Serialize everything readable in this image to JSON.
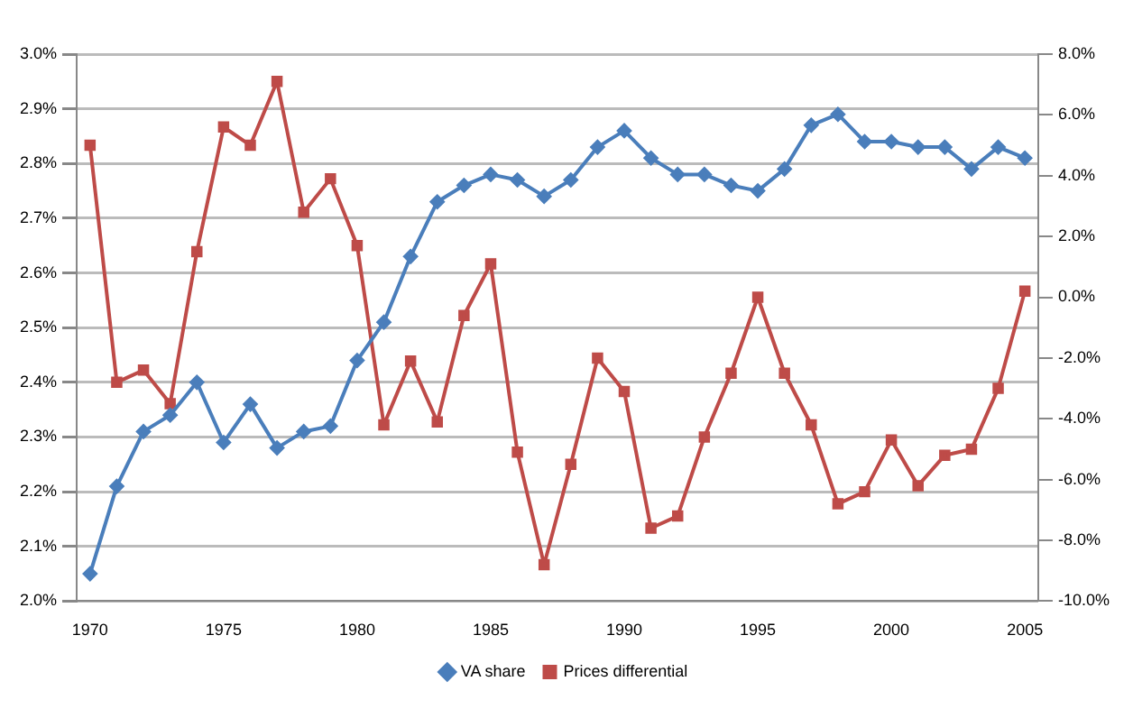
{
  "chart_data": {
    "type": "line",
    "x": [
      1970,
      1971,
      1972,
      1973,
      1974,
      1975,
      1976,
      1977,
      1978,
      1979,
      1980,
      1981,
      1982,
      1983,
      1984,
      1985,
      1986,
      1987,
      1988,
      1989,
      1990,
      1991,
      1992,
      1993,
      1994,
      1995,
      1996,
      1997,
      1998,
      1999,
      2000,
      2001,
      2002,
      2003,
      2004,
      2005
    ],
    "series": [
      {
        "name": "VA share",
        "color": "#4a7ebb",
        "marker": "diamond",
        "values": [
          2.05,
          2.21,
          2.31,
          2.34,
          2.4,
          2.29,
          2.36,
          2.28,
          2.31,
          2.32,
          2.44,
          2.51,
          2.63,
          2.73,
          2.76,
          2.78,
          2.77,
          2.74,
          2.77,
          2.83,
          2.86,
          2.81,
          2.78,
          2.78,
          2.76,
          2.75,
          2.79,
          2.87,
          2.89,
          2.84,
          2.84,
          2.83,
          2.83,
          2.79,
          2.83,
          2.81
        ]
      },
      {
        "name": "Prices differential",
        "color": "#be4b48",
        "marker": "square",
        "axis": "y2",
        "values": [
          5.0,
          -2.8,
          -2.4,
          -3.5,
          1.5,
          5.6,
          5.0,
          7.1,
          2.8,
          3.9,
          1.7,
          -4.2,
          -2.1,
          -4.1,
          -0.6,
          1.1,
          -5.1,
          -8.8,
          -5.5,
          -2.0,
          -3.1,
          -7.6,
          -7.2,
          -4.6,
          -2.5,
          0.0,
          -2.5,
          -4.2,
          -6.8,
          -6.4,
          -4.7,
          -6.2,
          -5.2,
          -5.0,
          -3.0,
          0.2
        ]
      }
    ],
    "xlim": [
      1969.5,
      2005.5
    ],
    "xticks": [
      1970,
      1975,
      1980,
      1985,
      1990,
      1995,
      2000,
      2005
    ],
    "ylim": [
      2.0,
      3.0
    ],
    "yticks": [
      {
        "value": 2.0,
        "label": "2.0%"
      },
      {
        "value": 2.1,
        "label": "2.1%"
      },
      {
        "value": 2.2,
        "label": "2.2%"
      },
      {
        "value": 2.3,
        "label": "2.3%"
      },
      {
        "value": 2.4,
        "label": "2.4%"
      },
      {
        "value": 2.5,
        "label": "2.5%"
      },
      {
        "value": 2.6,
        "label": "2.6%"
      },
      {
        "value": 2.7,
        "label": "2.7%"
      },
      {
        "value": 2.8,
        "label": "2.8%"
      },
      {
        "value": 2.9,
        "label": "2.9%"
      },
      {
        "value": 3.0,
        "label": "3.0%"
      }
    ],
    "y2lim": [
      -10,
      8
    ],
    "y2ticks": [
      {
        "value": -10,
        "label": "-10.0%"
      },
      {
        "value": -8,
        "label": "-8.0%"
      },
      {
        "value": -6,
        "label": "-6.0%"
      },
      {
        "value": -4,
        "label": "-4.0%"
      },
      {
        "value": -2,
        "label": "-2.0%"
      },
      {
        "value": 0,
        "label": "0.0%"
      },
      {
        "value": 2,
        "label": "2.0%"
      },
      {
        "value": 4,
        "label": "4.0%"
      },
      {
        "value": 6,
        "label": "6.0%"
      },
      {
        "value": 8,
        "label": "8.0%"
      }
    ],
    "grid": "y",
    "legend": "bottom",
    "line_style": "solid"
  }
}
